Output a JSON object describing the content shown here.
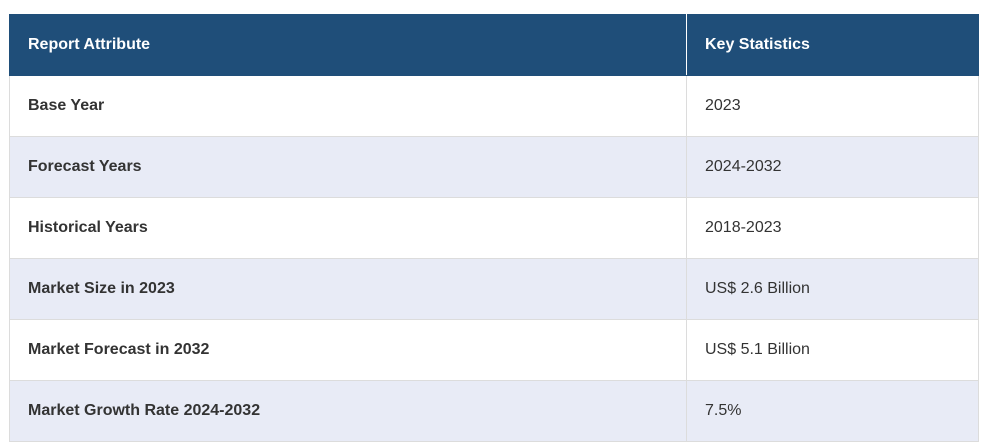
{
  "table": {
    "headers": {
      "attribute": "Report Attribute",
      "statistics": "Key Statistics"
    },
    "rows": [
      {
        "attribute": "Base Year",
        "value": "2023"
      },
      {
        "attribute": "Forecast Years",
        "value": "2024-2032"
      },
      {
        "attribute": "Historical Years",
        "value": "2018-2023"
      },
      {
        "attribute": "Market Size in 2023",
        "value": "US$ 2.6 Billion"
      },
      {
        "attribute": "Market Forecast in 2032",
        "value": "US$ 5.1 Billion"
      },
      {
        "attribute": "Market Growth Rate 2024-2032",
        "value": "7.5%"
      }
    ]
  },
  "colors": {
    "header_bg": "#1f4e79",
    "header_text": "#ffffff",
    "row_alt_bg": "#e8ebf6",
    "row_bg": "#ffffff",
    "border": "#dcdcdc"
  }
}
